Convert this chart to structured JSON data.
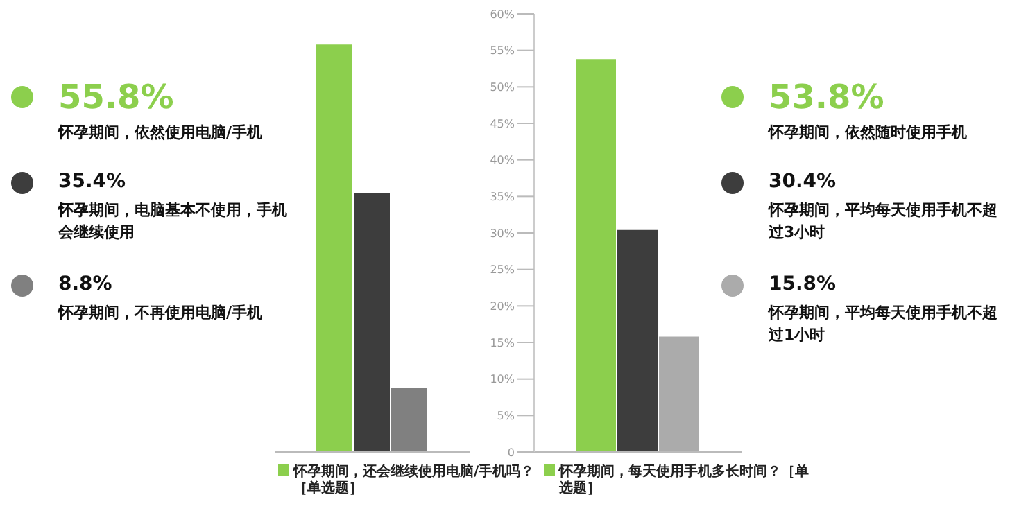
{
  "chart_data": {
    "type": "bar",
    "categories": [
      "怀孕期间，还会继续使用电脑/手机吗？［单选题］",
      "怀孕期间，每天使用手机多长时间？［单选题］"
    ],
    "series": [
      {
        "color": "#8ccf4d",
        "values": [
          55.8,
          53.8
        ]
      },
      {
        "color": "#3d3d3d",
        "values": [
          35.4,
          30.4
        ]
      },
      {
        "color": "#808080",
        "colors": [
          "#808080",
          "#ababab"
        ],
        "values": [
          8.8,
          15.8
        ]
      }
    ],
    "annotations": [
      "55.8%",
      "怀孕期间，依然使用电脑/手机",
      "35.4%",
      "怀孕期间，电脑基本不使用，手机会继续使用",
      "8.8%",
      "怀孕期间，不再使用电脑/手机",
      "53.8%",
      "怀孕期间，依然随时使用手机",
      "30.4%",
      "怀孕期间，平均每天使用手机不超过3小时",
      "15.8%",
      "怀孕期间，平均每天使用手机不超过1小时"
    ],
    "ylim": [
      0,
      60
    ],
    "yticks": [
      0,
      {
        "value": 5,
        "label": "5%"
      },
      {
        "value": 10,
        "label": "10%"
      },
      {
        "value": 15,
        "label": "15%"
      },
      {
        "value": 20,
        "label": "20%"
      },
      {
        "value": 25,
        "label": "25%"
      },
      {
        "value": 30,
        "label": "30%"
      },
      {
        "value": 35,
        "label": "35%"
      },
      {
        "value": 40,
        "label": "40%"
      },
      {
        "value": 45,
        "label": "45%"
      },
      {
        "value": 50,
        "label": "50%"
      },
      {
        "value": 55,
        "label": "55%"
      },
      {
        "value": 60,
        "label": "60%"
      }
    ],
    "grid": "y"
  }
}
